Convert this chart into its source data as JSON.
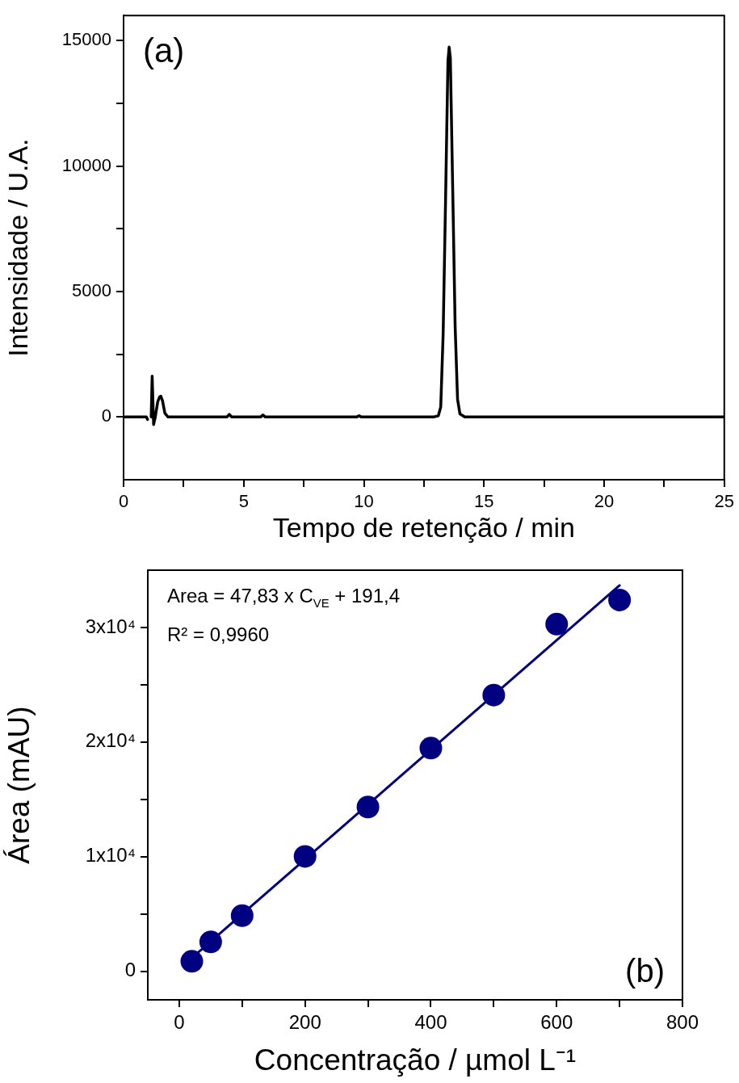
{
  "chart_data": [
    {
      "type": "line",
      "xlabel": "Tempo de retenção / min",
      "ylabel": "Intensidade / U.A.",
      "annotations": [
        "(a)"
      ],
      "x": [
        0,
        0.95,
        1.0,
        1.05,
        1.1,
        1.15,
        1.19,
        1.25,
        1.32,
        1.42,
        1.5,
        1.55,
        1.62,
        1.72,
        1.85,
        4.3,
        4.4,
        4.5,
        5.7,
        5.8,
        5.9,
        9.7,
        9.8,
        9.9,
        12.9,
        13.1,
        13.2,
        13.3,
        13.4,
        13.5,
        13.55,
        13.6,
        13.7,
        13.8,
        13.9,
        14.0,
        14.2,
        25
      ],
      "series": [
        {
          "color": "#000000",
          "values": [
            0,
            0,
            -100,
            null,
            null,
            0,
            1630,
            -300,
            0,
            600,
            800,
            830,
            650,
            150,
            0,
            0,
            100,
            0,
            0,
            80,
            0,
            0,
            50,
            0,
            0,
            50,
            400,
            3300,
            8600,
            14200,
            14740,
            14300,
            9000,
            3600,
            700,
            120,
            0,
            0
          ]
        }
      ],
      "xlim": [
        0,
        25
      ],
      "xticks": [
        0,
        {
          "value": 2.5,
          "label": null
        },
        5,
        {
          "value": 7.5,
          "label": null
        },
        10,
        {
          "value": 12.5,
          "label": null
        },
        15,
        {
          "value": 17.5,
          "label": null
        },
        20,
        {
          "value": 22.5,
          "label": null
        },
        25
      ],
      "ylim": [
        -2500,
        16000
      ],
      "yticks": [
        0,
        {
          "value": 2500,
          "label": null
        },
        5000,
        {
          "value": 7500,
          "label": null
        },
        10000,
        {
          "value": 12500,
          "label": null
        },
        15000
      ],
      "legend": false
    },
    {
      "type": "scatter",
      "xlabel": "Concentração / µmol L⁻¹",
      "ylabel": "Área (mAU)",
      "annotations": [
        "Area = 47,83 x C$_{VE}$ + 191,4",
        "R² = 0,9960",
        "(b)"
      ],
      "x": [
        20,
        50,
        100,
        200,
        300,
        400,
        500,
        600,
        700
      ],
      "series": [
        {
          "color": "#000080",
          "marker": "circle",
          "values": [
            860,
            2550,
            4850,
            10020,
            14330,
            19470,
            24100,
            30290,
            32400
          ]
        },
        {
          "type": "line",
          "color": "#000080",
          "marker": "none",
          "x": [
            20,
            700
          ],
          "values": [
            1150,
            33670
          ]
        }
      ],
      "xlim": [
        -50,
        800
      ],
      "xticks": [
        0,
        {
          "value": 100,
          "label": null
        },
        200,
        {
          "value": 300,
          "label": null
        },
        400,
        {
          "value": 500,
          "label": null
        },
        600,
        {
          "value": 700,
          "label": null
        },
        800
      ],
      "ylim": [
        -2500,
        35000
      ],
      "yticks": [
        0,
        {
          "value": 5000,
          "label": null
        },
        {
          "value": 10000,
          "label": "1x10⁴"
        },
        {
          "value": 15000,
          "label": null
        },
        {
          "value": 20000,
          "label": "2x10⁴"
        },
        {
          "value": 25000,
          "label": null
        },
        {
          "value": 30000,
          "label": "3x10⁴"
        }
      ],
      "legend": false
    }
  ]
}
